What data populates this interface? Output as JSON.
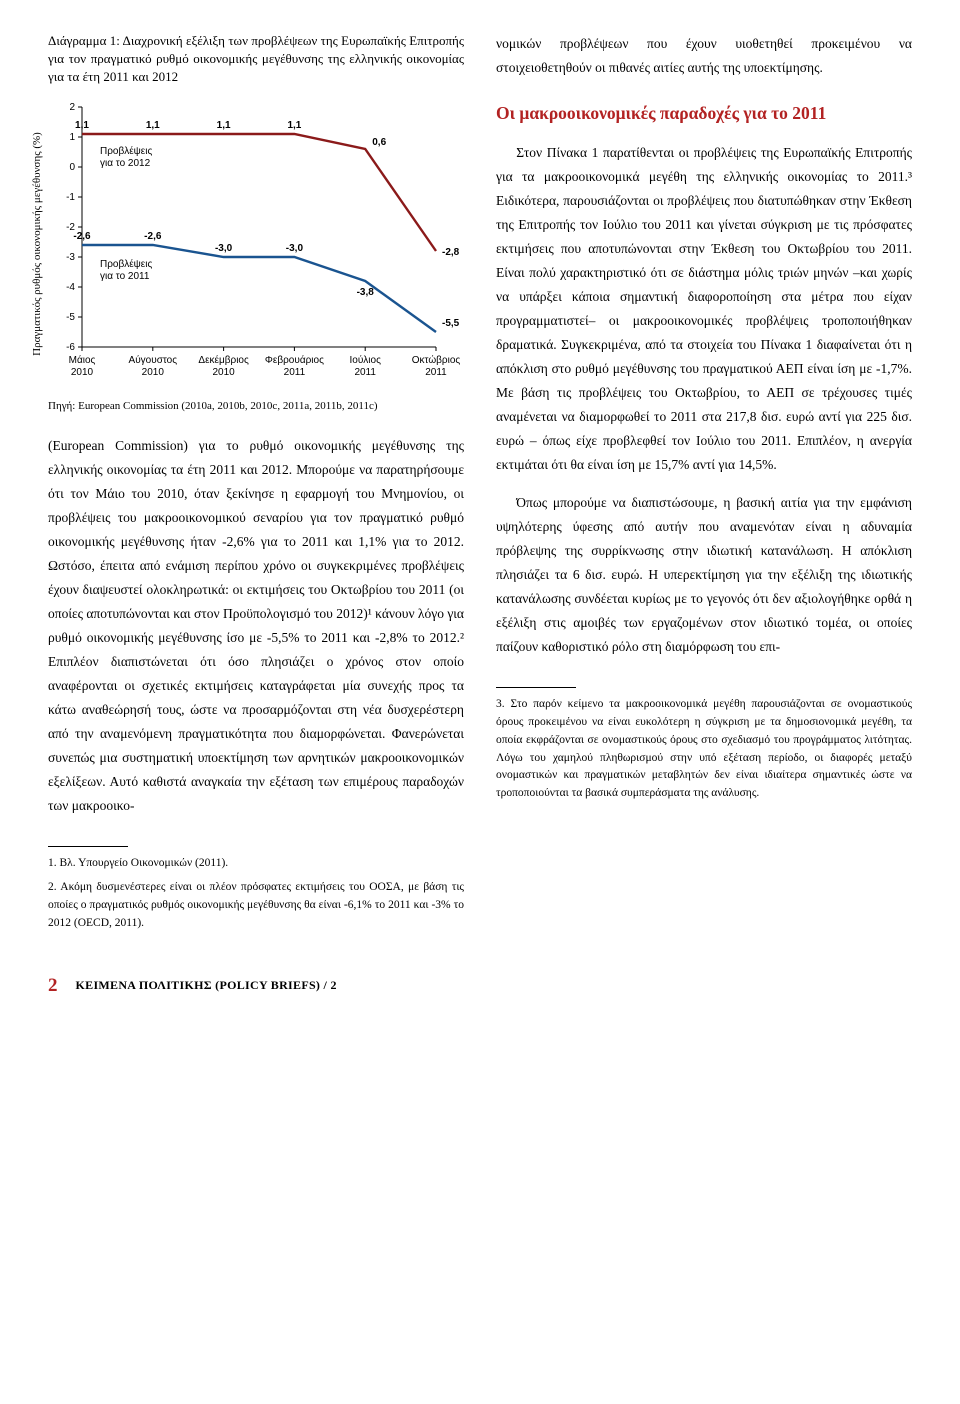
{
  "figure": {
    "caption": "Διάγραμμα 1: Διαχρονική εξέλιξη των προβλέψεων της Ευρωπαϊκής Επιτροπής για τον πραγματικό ρυθμό οικονομικής μεγέθυνσης της ελληνικής οικονομίας για τα έτη 2011 και 2012",
    "yaxis_label": "Πραγματικός ρυθμός οικονομικής μεγέθυνσης (%)",
    "source": "Πηγή: European Commission (2010a, 2010b, 2010c, 2011a, 2011b, 2011c)",
    "x_labels": [
      "Μάιος 2010",
      "Αύγουστος 2010",
      "Δεκέμβριος 2010",
      "Φεβρουάριος 2011",
      "Ιούλιος 2011",
      "Οκτώβριος 2011"
    ],
    "y_ticks": [
      2,
      1,
      0,
      -1,
      -2,
      -3,
      -4,
      -5,
      -6
    ],
    "series_2012": {
      "name": "Προβλέψεις για το 2012",
      "color": "#8b1a1a",
      "values": [
        1.1,
        1.1,
        1.1,
        1.1,
        0.6,
        -2.8
      ],
      "point_labels": [
        "1,1",
        "1,1",
        "1,1",
        "1,1",
        "0,6",
        "-2,8"
      ]
    },
    "series_2011": {
      "name": "Προβλέψεις για το 2011",
      "color": "#1a5490",
      "values": [
        -2.6,
        -2.6,
        -3.0,
        -3.0,
        -3.8,
        -5.5
      ],
      "point_labels": [
        "-2,6",
        "-2,6",
        "-3,0",
        "-3,0",
        "-3,8",
        "-5,5"
      ]
    },
    "label_fontsize": 10,
    "tick_fontsize": 10,
    "line_width": 2.4,
    "plot_bg": "#ffffff",
    "xlim": [
      0,
      5
    ],
    "ylim": [
      -6,
      2
    ]
  },
  "left_col": {
    "p1": "(European Commission) για το ρυθμό οικονομικής μεγέθυνσης της ελληνικής οικονομίας τα έτη 2011 και 2012. Μπορούμε να παρατηρήσουμε ότι τον Μάιο του 2010, όταν ξεκίνησε η εφαρμογή του Μνημονίου, οι προβλέψεις του μακροοικονομικού σεναρίου για τον πραγματικό ρυθμό οικονομικής μεγέθυνσης ήταν -2,6% για το 2011 και 1,1% για το 2012. Ωστόσο, έπειτα από ενάμιση περίπου χρόνο οι συγκεκριμένες προβλέψεις έχουν διαψευστεί ολοκληρωτικά: οι εκτιμήσεις του Οκτωβρίου του 2011 (οι οποίες αποτυπώνονται και στον Προϋπολογισμό του 2012)¹ κάνουν λόγο για ρυθμό οικονομικής μεγέθυνσης ίσο με -5,5% το 2011 και -2,8% το 2012.² Επιπλέον διαπιστώνεται ότι όσο πλησιάζει ο χρόνος στον οποίο αναφέρονται οι σχετικές εκτιμήσεις καταγράφεται μία συνεχής προς τα κάτω αναθεώρησή τους, ώστε να προσαρμόζονται στη νέα δυσχερέστερη από την αναμενόμενη πραγματικότητα που διαμορφώνεται. Φανερώνεται συνεπώς μια συστηματική υποεκτίμηση των αρνητικών μακροοικονομικών εξελίξεων. Αυτό καθιστά αναγκαία την εξέταση των επιμέρους παραδοχών των μακροοικο-",
    "fn1": "1. Βλ. Υπουργείο Οικονομικών (2011).",
    "fn2": "2. Ακόμη δυσμενέστερες είναι οι πλέον πρόσφατες εκτιμήσεις του ΟΟΣΑ, με βάση τις οποίες ο πραγματικός ρυθμός οικονομικής μεγέθυνσης θα είναι -6,1% το 2011 και -3% το 2012 (OECD, 2011)."
  },
  "right_col": {
    "p_top": "νομικών προβλέψεων που έχουν υιοθετηθεί προκειμένου να στοιχειοθετηθούν οι πιθανές αιτίες αυτής της υποεκτίμησης.",
    "heading": "Οι μακροοικονομικές παραδοχές για το 2011",
    "p1": "Στον Πίνακα 1 παρατίθενται οι προβλέψεις της Ευρωπαϊκής Επιτροπής για τα μακροοικονομικά μεγέθη της ελληνικής οικονομίας το 2011.³ Ειδικότερα, παρουσιάζονται οι προβλέψεις που διατυπώθηκαν στην Έκθεση της Επιτροπής τον Ιούλιο του 2011 και γίνεται σύγκριση με τις πρόσφατες εκτιμήσεις που αποτυπώνονται στην Έκθεση του Οκτωβρίου του 2011. Είναι πολύ χαρακτηριστικό ότι σε διάστημα μόλις τριών μηνών –και χωρίς να υπάρξει κάποια σημαντική διαφοροποίηση στα μέτρα που είχαν προγραμματιστεί– οι μακροοικονομικές προβλέψεις τροποποιήθηκαν δραματικά. Συγκεκριμένα, από τα στοιχεία του Πίνακα 1 διαφαίνεται ότι η απόκλιση στο ρυθμό μεγέθυνσης του πραγματικού ΑΕΠ είναι ίση με -1,7%. Με βάση τις προβλέψεις του Οκτωβρίου, το ΑΕΠ σε τρέχουσες τιμές αναμένεται να διαμορφωθεί το 2011 στα 217,8 δισ. ευρώ αντί για 225 δισ. ευρώ – όπως είχε προβλεφθεί τον Ιούλιο του 2011. Επιπλέον, η ανεργία εκτιμάται ότι θα είναι ίση με 15,7% αντί για 14,5%.",
    "p2": "Όπως μπορούμε να διαπιστώσουμε, η βασική αιτία για την εμφάνιση υψηλότερης ύφεσης από αυτήν που αναμενόταν είναι η αδυναμία πρόβλεψης της συρρίκνωσης στην ιδιωτική κατανάλωση. Η απόκλιση πλησιάζει τα 6 δισ. ευρώ. Η υπερεκτίμηση για την εξέλιξη της ιδιωτικής κατανάλωσης συνδέεται κυρίως με το γεγονός ότι δεν αξιολογήθηκε ορθά η εξέλιξη στις αμοιβές των εργαζομένων στον ιδιωτικό τομέα, οι οποίες παίζουν καθοριστικό ρόλο στη διαμόρφωση του επι-",
    "fn3": "3. Στο παρόν κείμενο τα μακροοικονομικά μεγέθη παρουσιάζονται σε ονομαστικούς όρους προκειμένου να είναι ευκολότερη η σύγκριση με τα δημοσιονομικά μεγέθη, τα οποία εκφράζονται σε ονομαστικούς όρους στο σχεδιασμό του προγράμματος λιτότητας. Λόγω του χαμηλού πληθωρισμού στην υπό εξέταση περίοδο, οι διαφορές μεταξύ ονομαστικών και πραγματικών μεταβλητών δεν είναι ιδιαίτερα σημαντικές ώστε να τροποποιούνται τα βασικά συμπεράσματα της ανάλυσης."
  },
  "footer": {
    "page": "2",
    "label": "ΚΕΙΜΕΝΑ ΠΟΛΙΤΙΚΗΣ (POLICY BRIEFS)  /  2"
  }
}
